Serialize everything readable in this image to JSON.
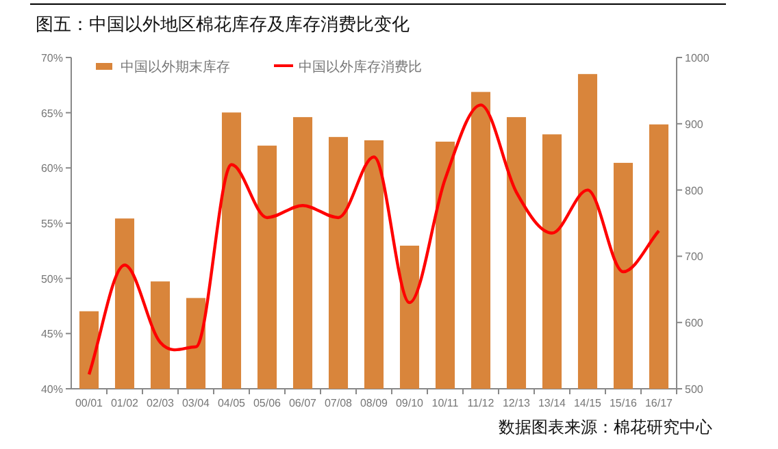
{
  "chart_data": {
    "type": "bar",
    "title": "图五：中国以外地区棉花库存及库存消费比变化",
    "categories": [
      "00/01",
      "01/02",
      "02/03",
      "03/04",
      "04/05",
      "05/06",
      "06/07",
      "07/08",
      "08/09",
      "09/10",
      "10/11",
      "11/12",
      "12/13",
      "13/14",
      "14/15",
      "15/16",
      "16/17"
    ],
    "series": [
      {
        "name": "中国以外期末库存",
        "axis": "y2",
        "color": "#d9853b",
        "values": [
          617,
          757,
          662,
          637,
          917,
          867,
          910,
          880,
          875,
          716,
          873,
          948,
          910,
          884,
          975,
          841,
          899
        ]
      },
      {
        "name": "中国以外库存消费比",
        "type": "line",
        "axis": "y",
        "color": "#ff0000",
        "values": [
          41.3,
          51.2,
          44.2,
          43.8,
          60.3,
          55.5,
          56.6,
          55.5,
          61.0,
          47.8,
          59.0,
          65.7,
          57.8,
          54.1,
          58.0,
          50.6,
          54.3
        ]
      }
    ],
    "ylim": [
      40,
      70
    ],
    "yticks": [
      {
        "value": 40,
        "label": "40%"
      },
      {
        "value": 45,
        "label": "45%"
      },
      {
        "value": 50,
        "label": "50%"
      },
      {
        "value": 55,
        "label": "55%"
      },
      {
        "value": 60,
        "label": "60%"
      },
      {
        "value": 65,
        "label": "65%"
      },
      {
        "value": 70,
        "label": "70%"
      }
    ],
    "y2lim": [
      500,
      1000
    ],
    "y2ticks": [
      500,
      600,
      700,
      800,
      900,
      1000
    ],
    "legend": "top left",
    "annotations": [
      "数据图表来源：棉花研究中心"
    ]
  }
}
